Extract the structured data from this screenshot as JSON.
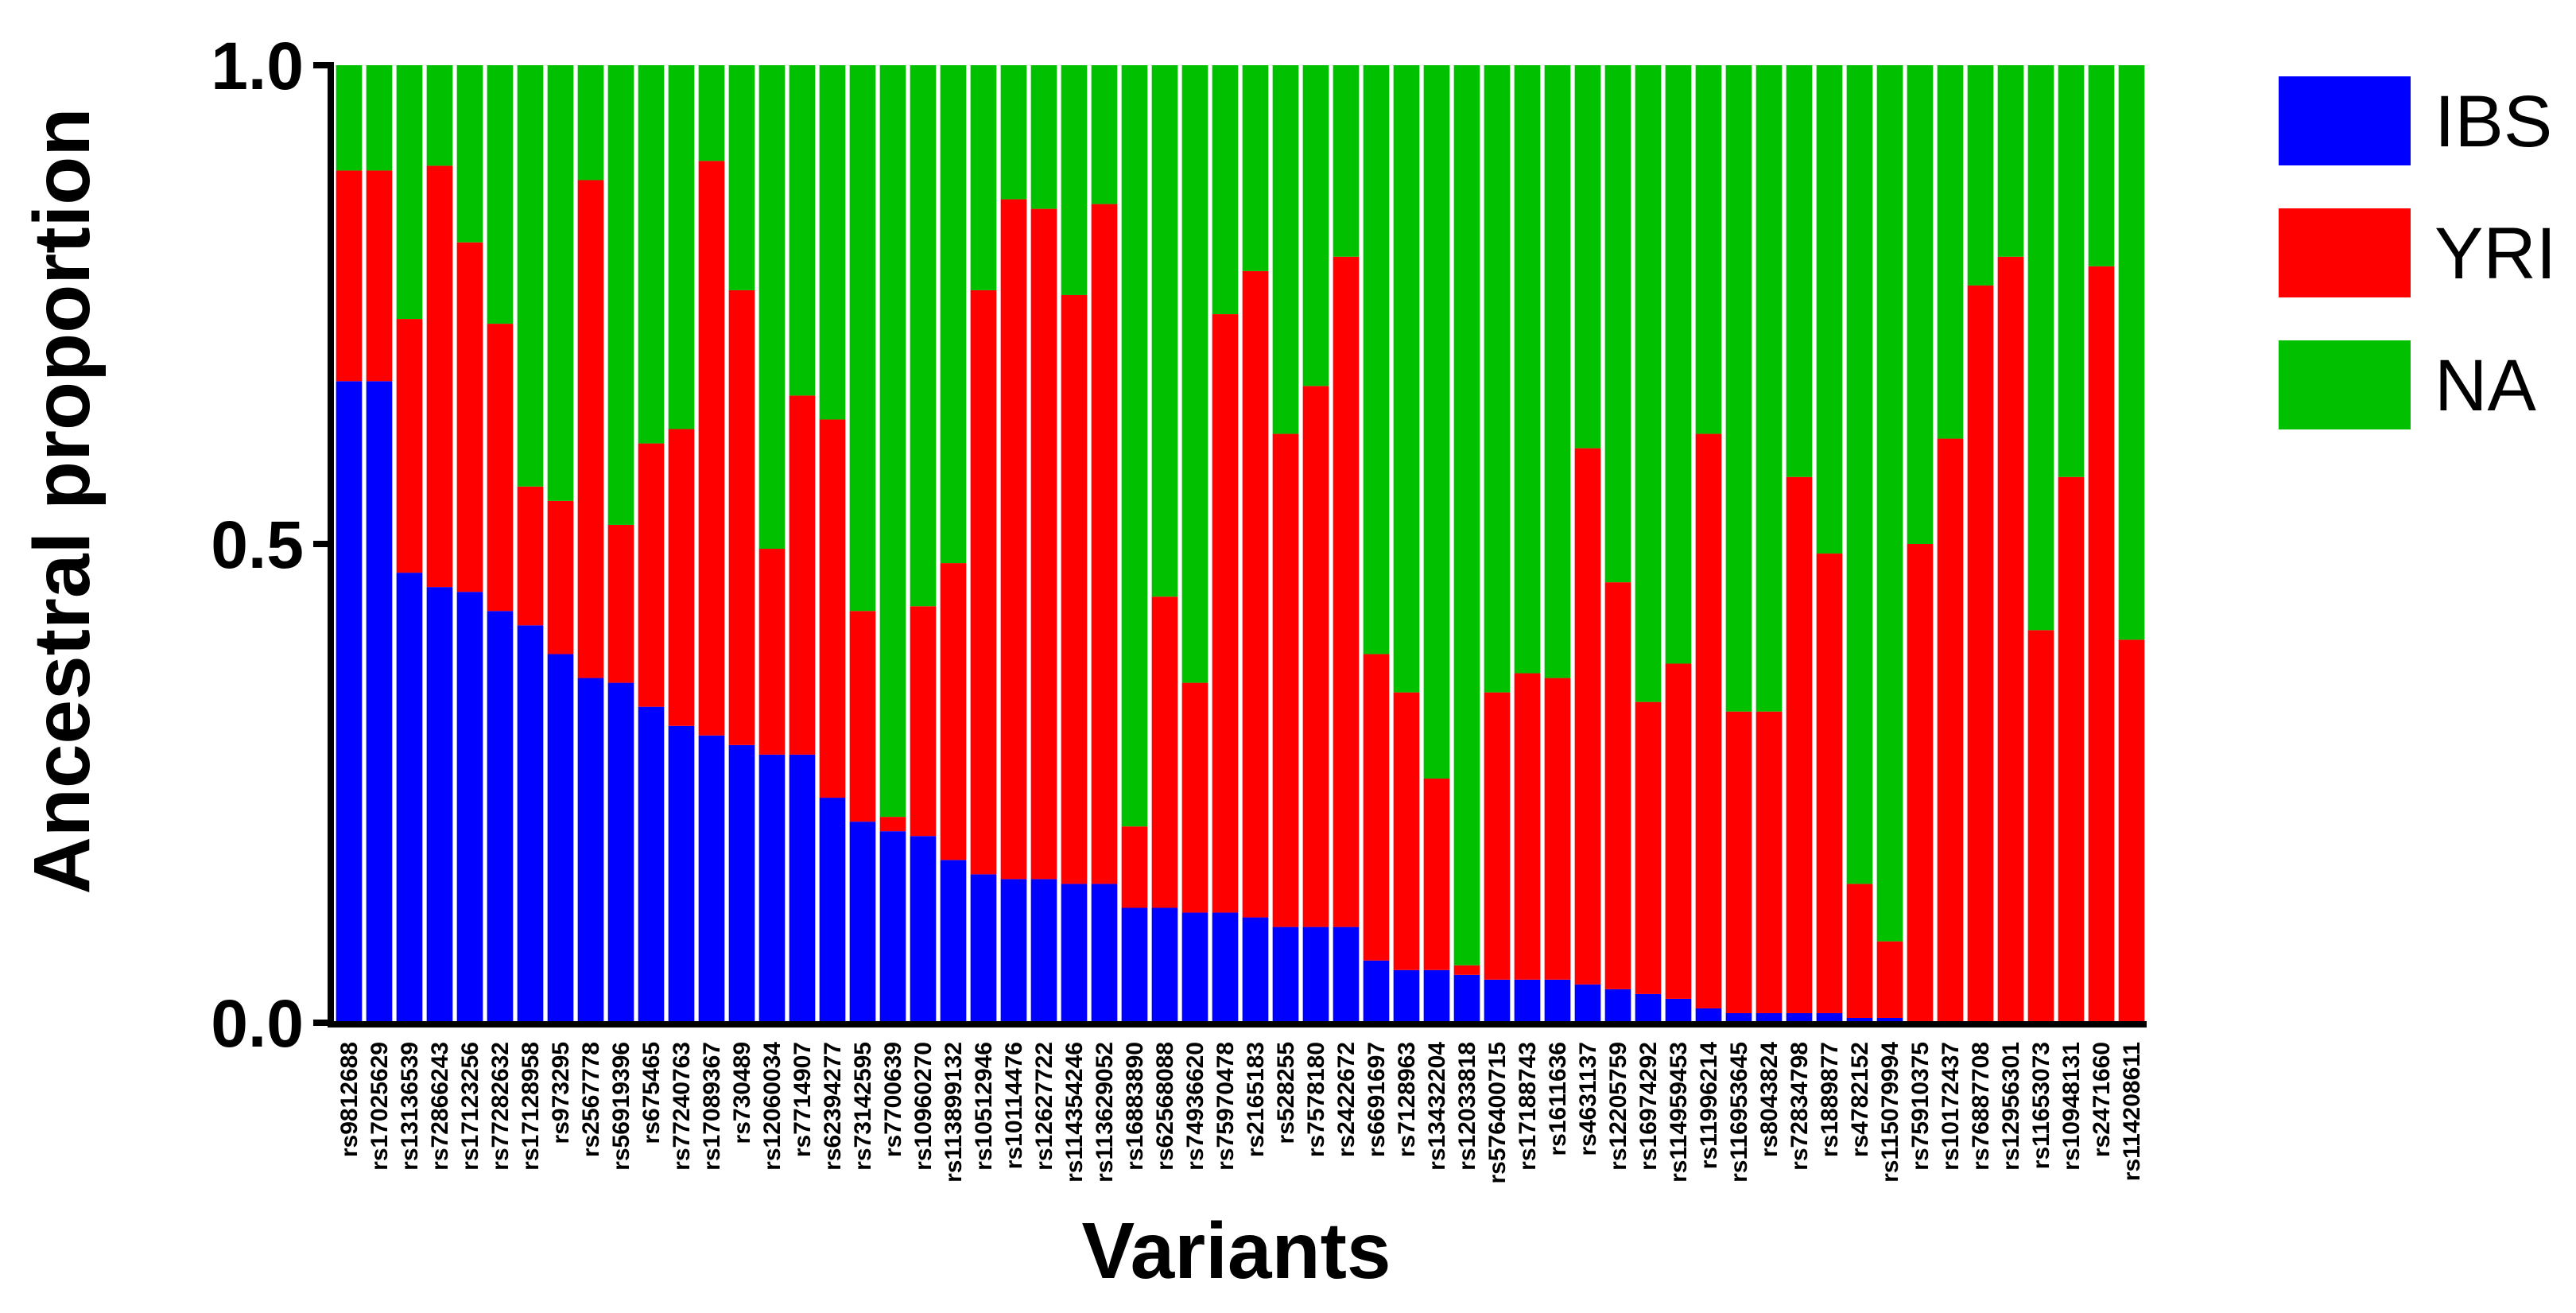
{
  "chart_data": {
    "type": "bar",
    "stacked": true,
    "xlabel": "Variants",
    "ylabel": "Ancestral proportion",
    "ylim": [
      0,
      1
    ],
    "yticks": [
      "0.0",
      "0.5",
      "1.0"
    ],
    "legend_position": "top-right",
    "categories": [
      "rs9812688",
      "rs17025629",
      "rs13136539",
      "rs72866243",
      "rs17123256",
      "rs77282632",
      "rs17128958",
      "rs973295",
      "rs2567778",
      "rs56919396",
      "rs675465",
      "rs77240763",
      "rs17089367",
      "rs730489",
      "rs12060034",
      "rs7714907",
      "rs62394277",
      "rs73142595",
      "rs7700639",
      "rs10960270",
      "rs113899132",
      "rs10512946",
      "rs10114476",
      "rs12627722",
      "rs114354246",
      "rs113629052",
      "rs16883890",
      "rs62568088",
      "rs74936620",
      "rs75970478",
      "rs2165183",
      "rs528255",
      "rs7578180",
      "rs2422672",
      "rs6691697",
      "rs7128963",
      "rs13432204",
      "rs12033818",
      "rs576400715",
      "rs17188743",
      "rs1611636",
      "rs4631137",
      "rs12205759",
      "rs16974292",
      "rs114959453",
      "rs11996214",
      "rs116953645",
      "rs8043824",
      "rs72834798",
      "rs1889877",
      "rs4782152",
      "rs115079994",
      "rs75910375",
      "rs10172437",
      "rs76887708",
      "rs12956301",
      "rs11653073",
      "rs10948131",
      "rs2471660",
      "rs114208611"
    ],
    "series": [
      {
        "name": "IBS",
        "color": "#0000ff",
        "values": [
          0.67,
          0.67,
          0.47,
          0.455,
          0.45,
          0.43,
          0.415,
          0.385,
          0.36,
          0.355,
          0.33,
          0.31,
          0.3,
          0.29,
          0.28,
          0.28,
          0.235,
          0.21,
          0.2,
          0.195,
          0.17,
          0.155,
          0.15,
          0.15,
          0.145,
          0.145,
          0.12,
          0.12,
          0.115,
          0.115,
          0.11,
          0.1,
          0.1,
          0.1,
          0.065,
          0.055,
          0.055,
          0.05,
          0.045,
          0.045,
          0.045,
          0.04,
          0.035,
          0.03,
          0.025,
          0.015,
          0.01,
          0.01,
          0.01,
          0.01,
          0.005,
          0.005,
          0.0,
          0.0,
          0.0,
          0.0,
          0.0,
          0.0,
          0.0,
          0.0
        ]
      },
      {
        "name": "YRI",
        "color": "#ff0000",
        "values": [
          0.22,
          0.22,
          0.265,
          0.44,
          0.365,
          0.3,
          0.145,
          0.16,
          0.52,
          0.165,
          0.275,
          0.31,
          0.6,
          0.475,
          0.215,
          0.375,
          0.395,
          0.22,
          0.015,
          0.24,
          0.31,
          0.61,
          0.71,
          0.7,
          0.615,
          0.71,
          0.085,
          0.325,
          0.24,
          0.625,
          0.675,
          0.515,
          0.565,
          0.7,
          0.32,
          0.29,
          0.2,
          0.01,
          0.3,
          0.32,
          0.315,
          0.56,
          0.425,
          0.305,
          0.35,
          0.6,
          0.315,
          0.315,
          0.56,
          0.48,
          0.14,
          0.08,
          0.5,
          0.61,
          0.77,
          0.8,
          0.41,
          0.57,
          0.79,
          0.4
        ]
      },
      {
        "name": "NA",
        "color": "#00c000",
        "values": [
          0.11,
          0.11,
          0.265,
          0.105,
          0.185,
          0.27,
          0.44,
          0.455,
          0.12,
          0.48,
          0.395,
          0.38,
          0.1,
          0.235,
          0.505,
          0.345,
          0.37,
          0.57,
          0.785,
          0.565,
          0.52,
          0.235,
          0.14,
          0.15,
          0.24,
          0.145,
          0.795,
          0.555,
          0.645,
          0.26,
          0.215,
          0.385,
          0.335,
          0.2,
          0.615,
          0.655,
          0.745,
          0.94,
          0.655,
          0.635,
          0.64,
          0.4,
          0.54,
          0.665,
          0.625,
          0.385,
          0.675,
          0.675,
          0.43,
          0.51,
          0.855,
          0.915,
          0.5,
          0.39,
          0.23,
          0.2,
          0.59,
          0.43,
          0.21,
          0.6
        ]
      }
    ]
  }
}
